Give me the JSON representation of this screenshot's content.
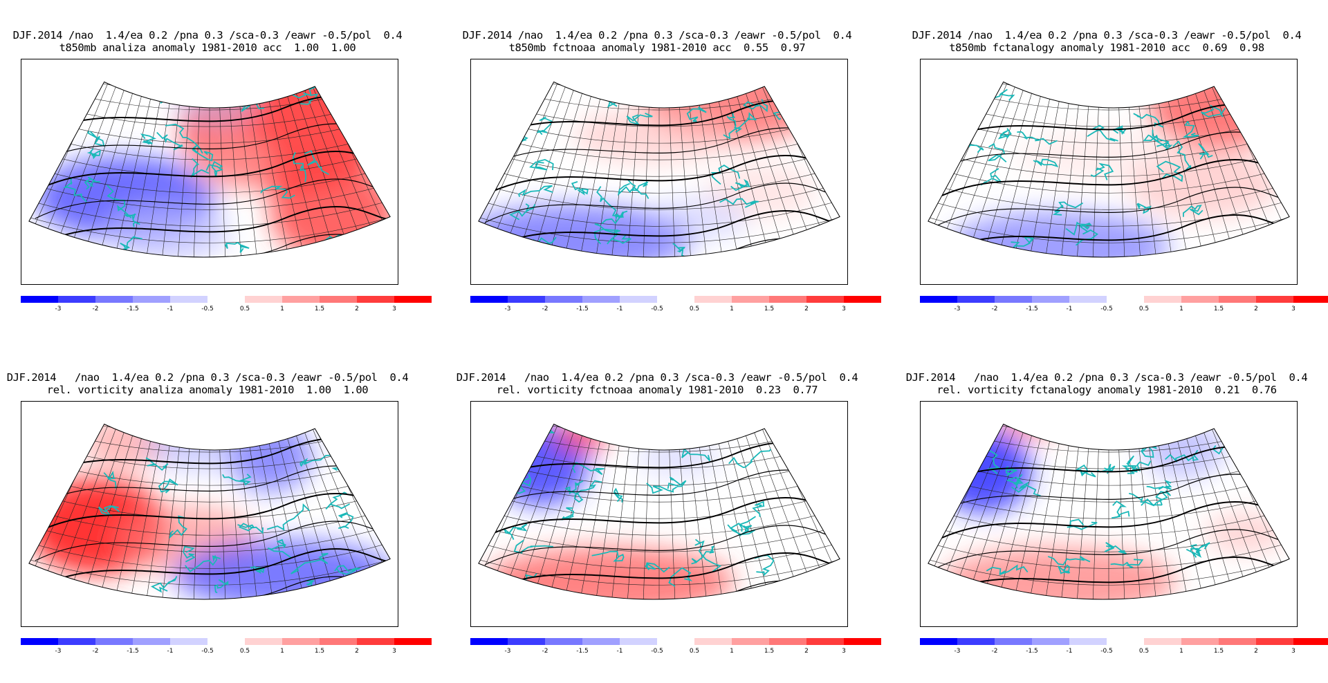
{
  "panels": [
    {
      "line1": "DJF.2014 /nao  1.4/ea 0.2 /pna 0.3 /sca-0.3 /eawr -0.5/pol  0.4",
      "line2": "t850mb analiza anomaly 1981-2010 acc  1.00  1.00"
    },
    {
      "line1": "DJF.2014 /nao  1.4/ea 0.2 /pna 0.3 /sca-0.3 /eawr -0.5/pol  0.4",
      "line2": "t850mb fctnoaa anomaly 1981-2010 acc  0.55  0.97"
    },
    {
      "line1": "DJF.2014 /nao  1.4/ea 0.2 /pna 0.3 /sca-0.3 /eawr -0.5/pol  0.4",
      "line2": "t850mb fctanalogy anomaly 1981-2010 acc  0.69  0.98"
    },
    {
      "line1": "DJF.2014   /nao  1.4/ea 0.2 /pna 0.3 /sca-0.3 /eawr -0.5/pol  0.4",
      "line2": "rel. vorticity analiza anomaly 1981-2010  1.00  1.00"
    },
    {
      "line1": "DJF.2014   /nao  1.4/ea 0.2 /pna 0.3 /sca-0.3 /eawr -0.5/pol  0.4",
      "line2": "rel. vorticity fctnoaa anomaly 1981-2010  0.23  0.77"
    },
    {
      "line1": "DJF.2014   /nao  1.4/ea 0.2 /pna 0.3 /sca-0.3 /eawr -0.5/pol  0.4",
      "line2": "rel. vorticity fctanalogy anomaly 1981-2010  0.21  0.76"
    }
  ],
  "colorbar": {
    "labels": [
      "-3",
      "-2",
      "-1.5",
      "-1",
      "-0.5",
      "0.5",
      "1",
      "1.5",
      "2",
      "3"
    ],
    "colors": [
      "#0000ff",
      "#3c3cff",
      "#7878ff",
      "#a0a0ff",
      "#d2d2ff",
      "#ffffff",
      "#ffd2d2",
      "#ffa0a0",
      "#ff7878",
      "#ff3c3c",
      "#ff0000"
    ]
  }
}
